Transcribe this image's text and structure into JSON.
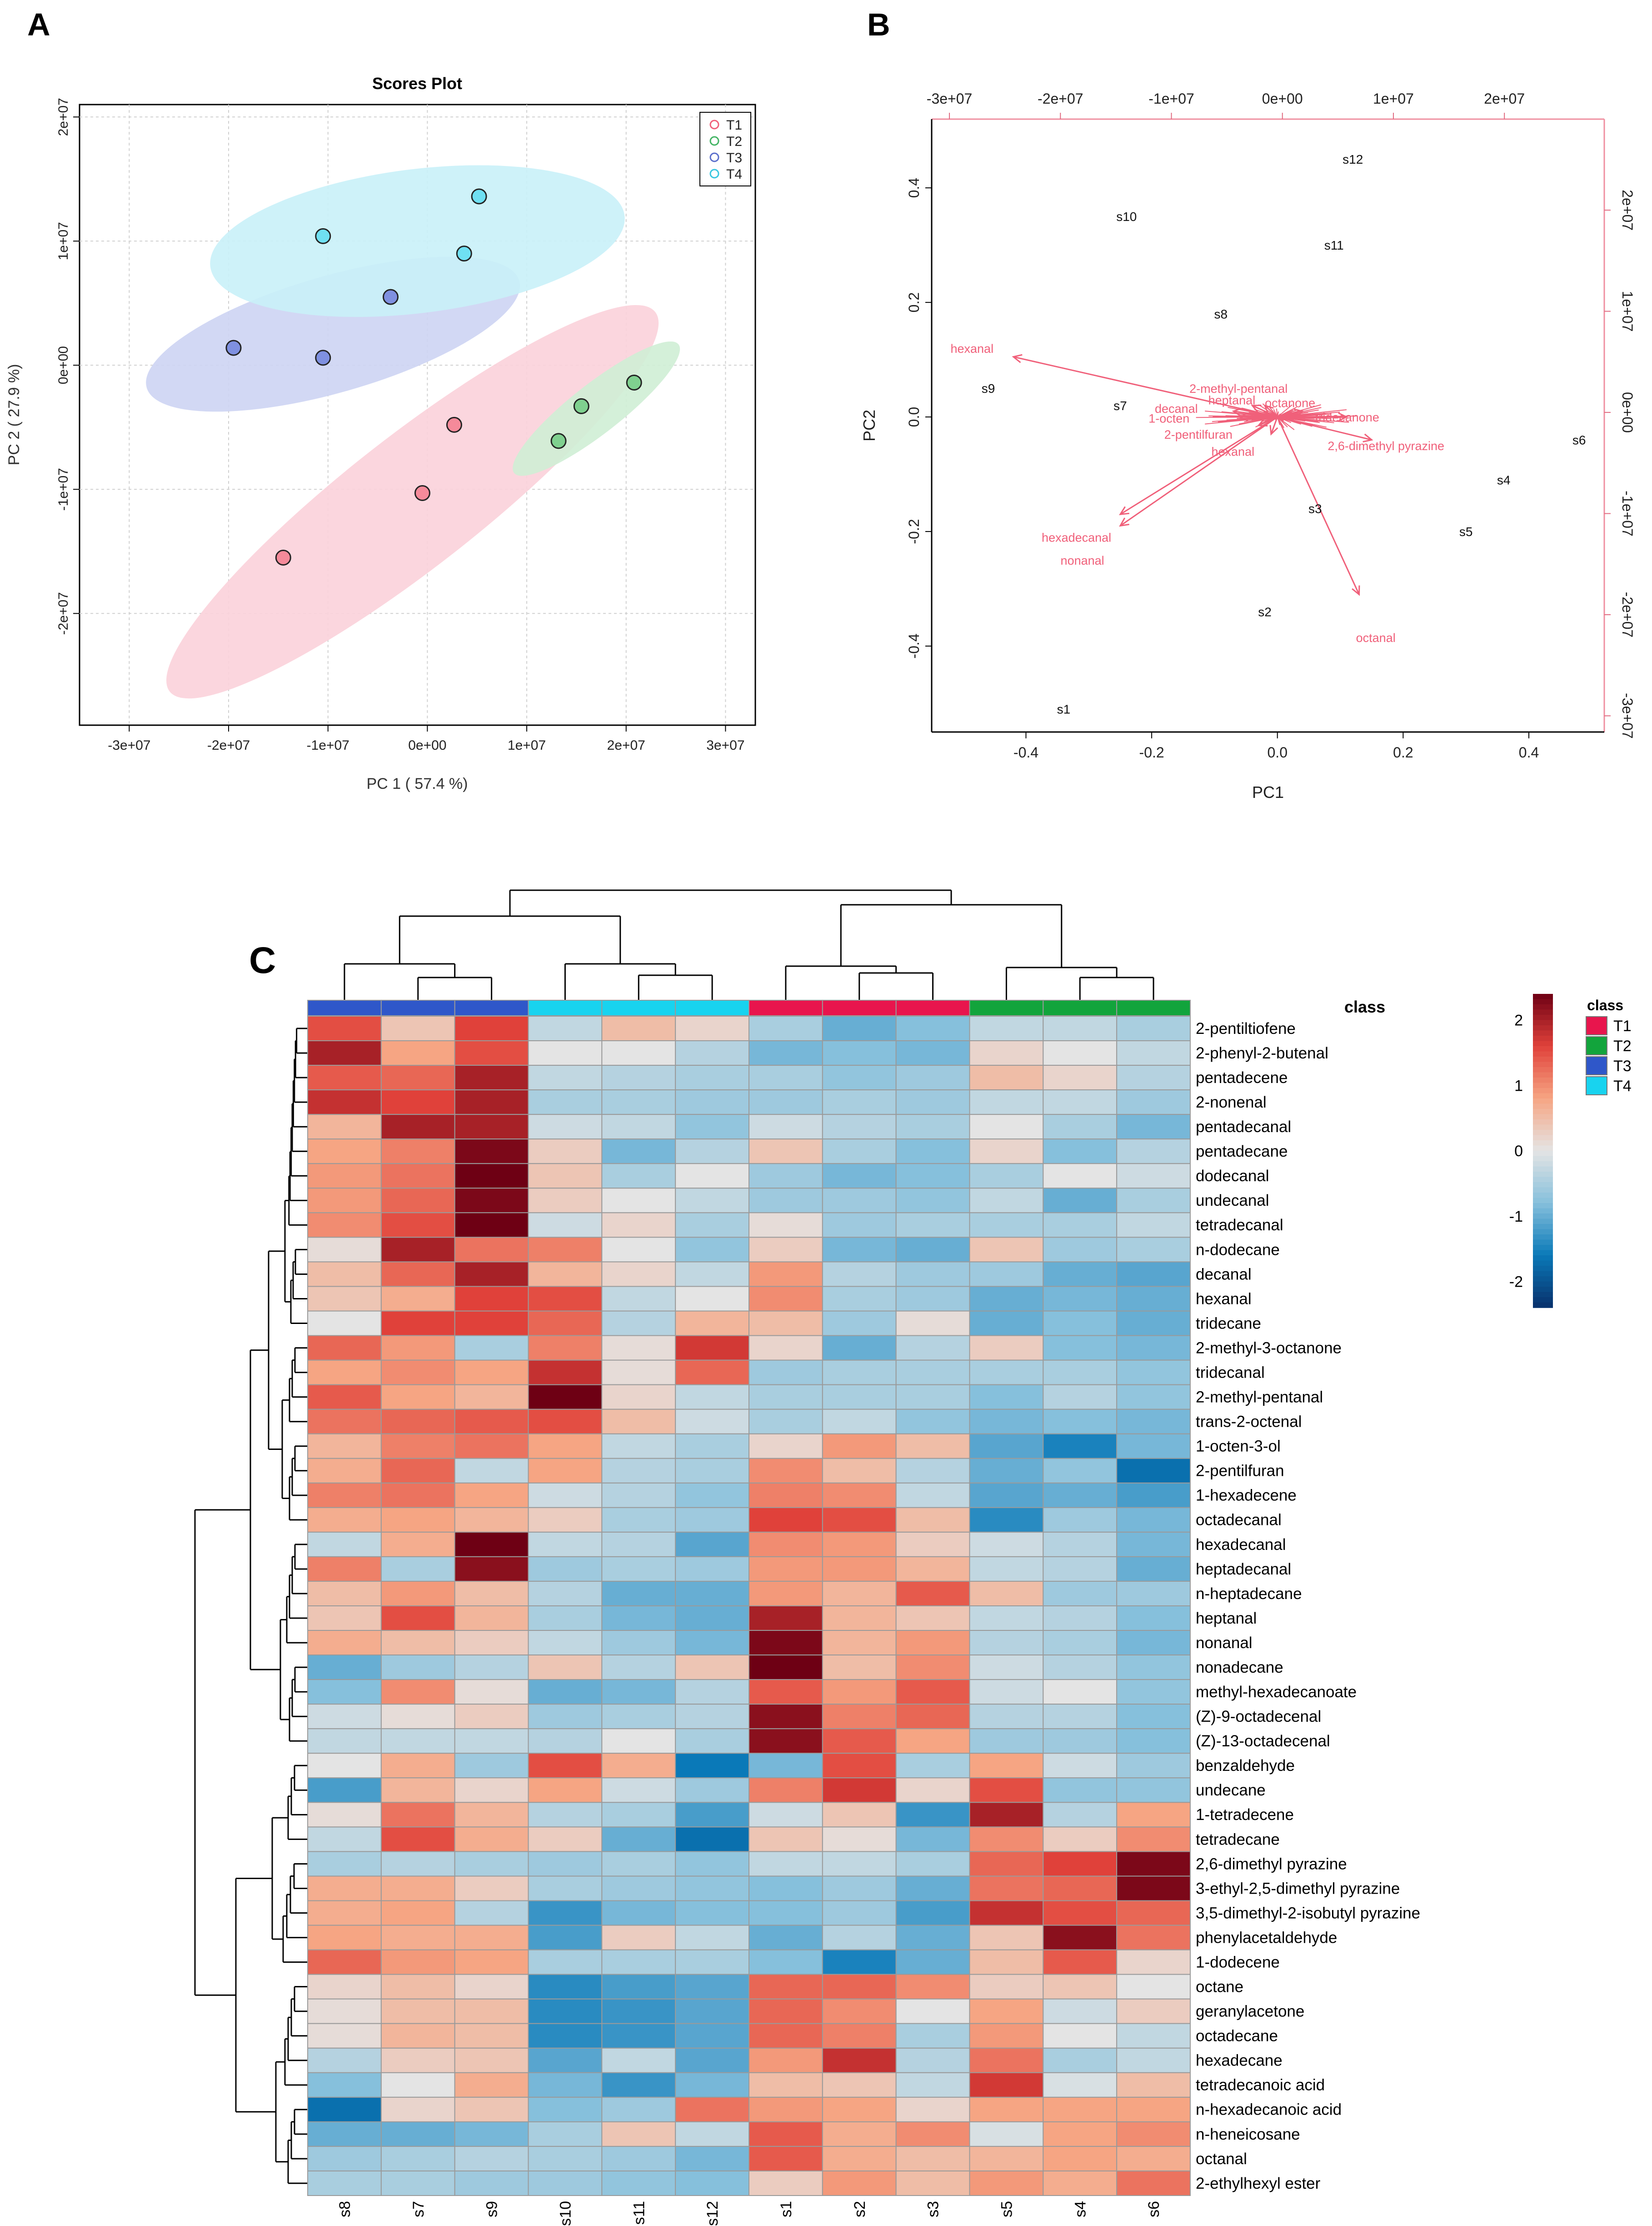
{
  "panels": {
    "A": "A",
    "B": "B",
    "C": "C"
  },
  "chart_data": [
    {
      "type": "scatter",
      "panel": "A",
      "title": "Scores Plot",
      "xlabel": "PC 1 ( 57.4 %)",
      "ylabel": "PC 2 ( 27.9 %)",
      "xlim": [
        -35000000,
        33000000
      ],
      "ylim": [
        -29000000,
        21000000
      ],
      "xticks": [
        -30000000,
        -20000000,
        -10000000,
        0,
        10000000,
        20000000,
        30000000
      ],
      "xtick_labels": [
        "-3e+07",
        "-2e+07",
        "-1e+07",
        "0e+00",
        "1e+07",
        "2e+07",
        "3e+07"
      ],
      "yticks": [
        -20000000,
        -10000000,
        0,
        10000000,
        20000000
      ],
      "ytick_labels": [
        "-2e+07",
        "-1e+07",
        "0e+00",
        "1e+07",
        "2e+07"
      ],
      "legend": {
        "position": "top-right",
        "entries": [
          "T1",
          "T2",
          "T3",
          "T4"
        ]
      },
      "colors": {
        "T1": "#f0607a",
        "T2": "#43b464",
        "T3": "#5b6fcc",
        "T4": "#39c6e0"
      },
      "fills": {
        "T1": "#f58a9a",
        "T2": "#7fd08f",
        "T3": "#7f90e0",
        "T4": "#6fe0f2"
      },
      "ellipse_fills": {
        "T1": "#fbd2da",
        "T2": "#cfeed5",
        "T3": "#cdd4f3",
        "T4": "#c9f1f8"
      },
      "series": [
        {
          "name": "T1",
          "x": [
            -14500000,
            -500000,
            2700000
          ],
          "y": [
            -15500000,
            -10300000,
            -4800000
          ]
        },
        {
          "name": "T2",
          "x": [
            13200000,
            15500000,
            20800000
          ],
          "y": [
            -6100000,
            -3300000,
            -1400000
          ]
        },
        {
          "name": "T3",
          "x": [
            -19500000,
            -10500000,
            -3700000
          ],
          "y": [
            1400000,
            600000,
            5500000
          ]
        },
        {
          "name": "T4",
          "x": [
            -10500000,
            3700000,
            5200000
          ],
          "y": [
            10400000,
            9000000,
            13600000
          ]
        }
      ],
      "ellipses": [
        {
          "name": "T1",
          "center": [
            -1500000,
            -11000000
          ],
          "rx": 31000000,
          "ry": 5300000,
          "angle_deg": -38
        },
        {
          "name": "T2",
          "center": [
            17000000,
            -3500000
          ],
          "rx": 10500000,
          "ry": 2000000,
          "angle_deg": -38
        },
        {
          "name": "T3",
          "center": [
            -9500000,
            2500000
          ],
          "rx": 19500000,
          "ry": 4700000,
          "angle_deg": -16
        },
        {
          "name": "T4",
          "center": [
            -1000000,
            10000000
          ],
          "rx": 21000000,
          "ry": 5800000,
          "angle_deg": -7
        }
      ]
    },
    {
      "type": "scatter",
      "panel": "B",
      "subtype": "biplot",
      "xlabel": "PC1",
      "ylabel": "PC2",
      "xlim": [
        -0.55,
        0.52
      ],
      "ylim": [
        -0.55,
        0.52
      ],
      "xticks": [
        -0.4,
        -0.2,
        0.0,
        0.2,
        0.4
      ],
      "xtick_labels": [
        "-0.4",
        "-0.2",
        "0.0",
        "0.2",
        "0.4"
      ],
      "yticks": [
        -0.4,
        -0.2,
        0.0,
        0.2,
        0.4
      ],
      "ytick_labels": [
        "-0.4",
        "-0.2",
        "0.0",
        "0.2",
        "0.4"
      ],
      "top_axis": {
        "lim": [
          -31600000,
          29000000
        ],
        "ticks": [
          -30000000,
          -20000000,
          -10000000,
          0,
          10000000,
          20000000
        ],
        "labels": [
          "-3e+07",
          "-2e+07",
          "-1e+07",
          "0e+00",
          "1e+07",
          "2e+07"
        ]
      },
      "right_axis": {
        "lim": [
          -31600000,
          29000000
        ],
        "ticks": [
          -30000000,
          -20000000,
          -10000000,
          0,
          10000000,
          20000000
        ],
        "labels": [
          "-3e+07",
          "-2e+07",
          "-1e+07",
          "0e+00",
          "1e+07",
          "2e+07"
        ]
      },
      "samples": [
        {
          "label": "s1",
          "x": -0.34,
          "y": -0.51
        },
        {
          "label": "s2",
          "x": -0.02,
          "y": -0.34
        },
        {
          "label": "s3",
          "x": 0.06,
          "y": -0.16
        },
        {
          "label": "s4",
          "x": 0.36,
          "y": -0.11
        },
        {
          "label": "s5",
          "x": 0.3,
          "y": -0.2
        },
        {
          "label": "s6",
          "x": 0.48,
          "y": -0.04
        },
        {
          "label": "s7",
          "x": -0.25,
          "y": 0.02
        },
        {
          "label": "s8",
          "x": -0.09,
          "y": 0.18
        },
        {
          "label": "s9",
          "x": -0.46,
          "y": 0.05
        },
        {
          "label": "s10",
          "x": -0.24,
          "y": 0.35
        },
        {
          "label": "s11",
          "x": 0.09,
          "y": 0.3
        },
        {
          "label": "s12",
          "x": 0.12,
          "y": 0.45
        }
      ],
      "loadings": [
        {
          "label": "hexanal",
          "x": -0.42,
          "y": 0.105,
          "lx": -0.52,
          "ly": 0.12
        },
        {
          "label": "hexadecanal",
          "x": -0.25,
          "y": -0.19,
          "lx": -0.375,
          "ly": -0.21
        },
        {
          "label": "nonanal",
          "x": -0.25,
          "y": -0.17,
          "lx": -0.345,
          "ly": -0.25
        },
        {
          "label": "octanal",
          "x": 0.13,
          "y": -0.31,
          "lx": 0.125,
          "ly": -0.385
        },
        {
          "label": "2,6-dimethyl pyrazine",
          "x": 0.15,
          "y": -0.04,
          "lx": 0.08,
          "ly": -0.05
        },
        {
          "label": "2-methyl-pentanal",
          "x": -0.04,
          "y": 0.02,
          "lx": -0.14,
          "ly": 0.05
        },
        {
          "label": "heptanal",
          "x": -0.02,
          "y": 0.02,
          "lx": -0.11,
          "ly": 0.03
        },
        {
          "label": "octanone",
          "x": 0.04,
          "y": 0.01,
          "lx": -0.02,
          "ly": 0.025
        },
        {
          "label": "decanal",
          "x": -0.07,
          "y": 0.01,
          "lx": -0.195,
          "ly": 0.015
        },
        {
          "label": "1-octen",
          "x": -0.06,
          "y": 0.0,
          "lx": -0.205,
          "ly": -0.002
        },
        {
          "label": "2-pentilfuran",
          "x": -0.03,
          "y": -0.015,
          "lx": -0.18,
          "ly": -0.03
        },
        {
          "label": "hexanal",
          "x": -0.01,
          "y": -0.03,
          "lx": -0.105,
          "ly": -0.06
        },
        {
          "label": "tridecanone",
          "x": 0.11,
          "y": 0.0,
          "lx": 0.06,
          "ly": 0.0
        }
      ]
    },
    {
      "type": "heatmap",
      "panel": "C",
      "columns": [
        "s8",
        "s7",
        "s9",
        "s10",
        "s11",
        "s12",
        "s1",
        "s2",
        "s3",
        "s5",
        "s4",
        "s6"
      ],
      "class_row_label": "class",
      "column_classes": [
        "T3",
        "T3",
        "T3",
        "T4",
        "T4",
        "T4",
        "T1",
        "T1",
        "T1",
        "T2",
        "T2",
        "T2"
      ],
      "class_legend": {
        "title": "class",
        "entries": [
          "T1",
          "T2",
          "T3",
          "T4"
        ],
        "colors": [
          "#e8154d",
          "#12a43c",
          "#2f57c9",
          "#18d3ef"
        ]
      },
      "scale": {
        "min": -2.4,
        "max": 2.4,
        "ticks": [
          2,
          1,
          0,
          -1,
          -2
        ],
        "tick_labels": [
          "2",
          "1",
          "0",
          "-1",
          "-2"
        ]
      },
      "rows": [
        "2-pentiltiofene",
        "2-phenyl-2-butenal",
        "pentadecene",
        "2-nonenal",
        "pentadecanal",
        "pentadecane",
        "dodecanal",
        "undecanal",
        "tetradecanal",
        "n-dodecane",
        "decanal",
        "hexanal",
        "tridecane",
        "2-methyl-3-octanone",
        "tridecanal",
        "2-methyl-pentanal",
        "trans-2-octenal",
        "1-octen-3-ol",
        "2-pentilfuran",
        "1-hexadecene",
        "octadecanal",
        "hexadecanal",
        "heptadecanal",
        "n-heptadecane",
        "heptanal",
        "nonanal",
        "nonadecane",
        "methyl-hexadecanoate",
        "(Z)-9-octadecenal",
        "(Z)-13-octadecenal",
        "benzaldehyde",
        "undecane",
        "1-tetradecene",
        "tetradecane",
        "2,6-dimethyl pyrazine",
        "3-ethyl-2,5-dimethyl pyrazine",
        "3,5-dimethyl-2-isobutyl pyrazine",
        "phenylacetaldehyde",
        "1-dodecene",
        "octane",
        "geranylacetone",
        "octadecane",
        "hexadecane",
        "tetradecanoic acid",
        "n-hexadecanoic acid",
        "n-heneicosane",
        "octanal",
        "2-ethylhexyl ester"
      ],
      "values": [
        [
          1.5,
          0.4,
          1.6,
          -0.3,
          0.5,
          0.2,
          -0.5,
          -1.0,
          -0.8,
          -0.3,
          -0.3,
          -0.5
        ],
        [
          2.0,
          0.8,
          1.5,
          0.0,
          0.0,
          -0.4,
          -0.9,
          -0.8,
          -0.9,
          0.2,
          0.0,
          -0.3
        ],
        [
          1.4,
          1.3,
          2.0,
          -0.3,
          -0.4,
          -0.5,
          -0.5,
          -0.7,
          -0.6,
          0.5,
          0.2,
          -0.4
        ],
        [
          1.8,
          1.6,
          2.0,
          -0.5,
          -0.5,
          -0.6,
          -0.6,
          -0.5,
          -0.6,
          -0.3,
          -0.3,
          -0.6
        ],
        [
          0.6,
          2.0,
          2.0,
          -0.2,
          -0.3,
          -0.7,
          -0.2,
          -0.4,
          -0.5,
          0.0,
          -0.5,
          -0.9
        ],
        [
          0.8,
          1.1,
          2.3,
          0.3,
          -0.9,
          -0.4,
          0.4,
          -0.5,
          -0.8,
          0.2,
          -0.8,
          -0.4
        ],
        [
          0.9,
          1.2,
          2.4,
          0.4,
          -0.5,
          0.0,
          -0.6,
          -0.9,
          -0.8,
          -0.5,
          0.0,
          -0.2
        ],
        [
          0.9,
          1.3,
          2.3,
          0.3,
          0.0,
          -0.3,
          -0.6,
          -0.6,
          -0.7,
          -0.3,
          -1.0,
          -0.5
        ],
        [
          1.0,
          1.5,
          2.5,
          -0.2,
          0.2,
          -0.5,
          0.1,
          -0.6,
          -0.5,
          -0.5,
          -0.5,
          -0.3
        ],
        [
          0.1,
          2.0,
          1.2,
          1.1,
          0.0,
          -0.7,
          0.3,
          -0.9,
          -1.0,
          0.4,
          -0.6,
          -0.5
        ],
        [
          0.5,
          1.3,
          2.0,
          0.6,
          0.2,
          -0.3,
          0.9,
          -0.4,
          -0.6,
          -0.6,
          -1.0,
          -1.1
        ],
        [
          0.4,
          0.7,
          1.6,
          1.5,
          -0.3,
          0.0,
          1.0,
          -0.5,
          -0.6,
          -1.0,
          -0.9,
          -1.0
        ],
        [
          0.0,
          1.6,
          1.6,
          1.3,
          -0.4,
          0.6,
          0.5,
          -0.6,
          0.1,
          -1.0,
          -0.8,
          -1.0
        ],
        [
          1.3,
          0.9,
          -0.5,
          1.1,
          0.1,
          1.7,
          0.2,
          -1.0,
          -0.4,
          0.3,
          -0.8,
          -0.9
        ],
        [
          0.8,
          1.0,
          0.8,
          1.8,
          0.1,
          1.3,
          -0.6,
          -0.5,
          -0.5,
          -0.5,
          -0.5,
          -0.7
        ],
        [
          1.4,
          0.8,
          0.6,
          2.4,
          0.2,
          -0.3,
          -0.5,
          -0.5,
          -0.5,
          -0.8,
          -0.4,
          -0.7
        ],
        [
          1.2,
          1.3,
          1.4,
          1.5,
          0.5,
          -0.2,
          -0.5,
          -0.3,
          -0.7,
          -0.9,
          -0.8,
          -0.9
        ],
        [
          0.6,
          1.1,
          1.2,
          0.8,
          -0.3,
          -0.5,
          0.2,
          0.9,
          0.5,
          -1.1,
          -1.5,
          -0.9
        ],
        [
          0.7,
          1.3,
          -0.3,
          0.8,
          -0.4,
          -0.5,
          1.0,
          0.5,
          -0.4,
          -1.0,
          -0.7,
          -1.7
        ],
        [
          1.1,
          1.2,
          0.8,
          -0.2,
          -0.4,
          -0.7,
          1.1,
          1.0,
          -0.3,
          -1.1,
          -1.0,
          -1.2
        ],
        [
          0.7,
          0.8,
          0.6,
          0.3,
          -0.5,
          -0.6,
          1.6,
          1.5,
          0.5,
          -1.4,
          -0.6,
          -0.9
        ],
        [
          -0.3,
          0.7,
          2.4,
          -0.3,
          -0.4,
          -1.1,
          1.0,
          0.9,
          0.3,
          -0.2,
          -0.4,
          -0.9
        ],
        [
          1.1,
          -0.5,
          2.2,
          -0.6,
          -0.5,
          -0.6,
          0.9,
          0.9,
          0.6,
          -0.3,
          -0.4,
          -1.0
        ],
        [
          0.5,
          0.9,
          0.5,
          -0.4,
          -1.0,
          -1.0,
          0.9,
          0.6,
          1.4,
          0.5,
          -0.6,
          -0.6
        ],
        [
          0.4,
          1.5,
          0.6,
          -0.5,
          -0.9,
          -1.0,
          2.0,
          0.6,
          0.4,
          -0.3,
          -0.4,
          -0.8
        ],
        [
          0.7,
          0.5,
          0.3,
          -0.3,
          -0.6,
          -0.9,
          2.3,
          0.6,
          0.9,
          -0.4,
          -0.5,
          -0.9
        ],
        [
          -1.0,
          -0.6,
          -0.4,
          0.4,
          -0.4,
          0.4,
          2.4,
          0.5,
          1.0,
          -0.2,
          -0.4,
          -0.7
        ],
        [
          -0.8,
          1.0,
          0.1,
          -1.0,
          -0.9,
          -0.4,
          1.4,
          0.9,
          1.4,
          -0.2,
          0.0,
          -0.7
        ],
        [
          -0.2,
          0.1,
          0.3,
          -0.6,
          -0.5,
          -0.4,
          2.2,
          1.1,
          1.3,
          -0.4,
          -0.4,
          -0.8
        ],
        [
          -0.3,
          -0.3,
          -0.3,
          -0.4,
          0.0,
          -0.5,
          2.2,
          1.4,
          0.8,
          -0.6,
          -0.6,
          -0.8
        ],
        [
          0.0,
          0.7,
          -0.6,
          1.5,
          0.7,
          -1.6,
          -0.9,
          1.5,
          -0.5,
          0.8,
          -0.2,
          -0.6
        ],
        [
          -1.2,
          0.6,
          0.2,
          0.8,
          -0.2,
          -0.6,
          1.1,
          1.7,
          0.2,
          1.5,
          -0.7,
          -0.7
        ],
        [
          0.1,
          1.2,
          0.6,
          -0.4,
          -0.5,
          -1.2,
          -0.2,
          0.4,
          -1.3,
          2.0,
          -0.4,
          0.8
        ],
        [
          -0.3,
          1.5,
          0.7,
          0.3,
          -1.0,
          -1.7,
          0.4,
          0.1,
          -0.9,
          1.0,
          0.3,
          1.0
        ],
        [
          -0.5,
          -0.4,
          -0.5,
          -0.6,
          -0.5,
          -0.7,
          -0.3,
          -0.3,
          -0.5,
          1.3,
          1.6,
          2.3
        ],
        [
          0.7,
          0.7,
          0.3,
          -0.5,
          -0.6,
          -0.7,
          -0.8,
          -0.6,
          -1.0,
          1.2,
          1.3,
          2.3
        ],
        [
          0.7,
          0.8,
          -0.4,
          -1.3,
          -0.9,
          -0.8,
          -0.8,
          -0.6,
          -1.2,
          1.8,
          1.5,
          1.3
        ],
        [
          0.8,
          0.7,
          0.7,
          -1.2,
          0.3,
          -0.3,
          -1.0,
          -0.4,
          -1.0,
          0.4,
          2.2,
          1.2
        ],
        [
          1.3,
          0.9,
          0.8,
          -0.5,
          -0.5,
          -0.5,
          -0.8,
          -1.5,
          -1.0,
          0.5,
          1.4,
          0.2
        ],
        [
          0.2,
          0.5,
          0.2,
          -1.4,
          -1.2,
          -1.1,
          1.3,
          1.3,
          1.0,
          0.3,
          0.4,
          0.0
        ],
        [
          0.1,
          0.5,
          0.5,
          -1.4,
          -1.3,
          -1.1,
          1.3,
          1.0,
          0.0,
          0.8,
          -0.2,
          0.3
        ],
        [
          0.1,
          0.6,
          0.5,
          -1.4,
          -1.3,
          -1.1,
          1.3,
          1.1,
          -0.5,
          0.9,
          0.0,
          -0.3
        ],
        [
          -0.4,
          0.3,
          0.4,
          -1.1,
          -0.3,
          -1.1,
          0.9,
          1.8,
          -0.4,
          1.2,
          -0.5,
          -0.3
        ],
        [
          -0.8,
          0.0,
          0.7,
          -0.9,
          -1.3,
          -0.9,
          0.5,
          0.4,
          -0.3,
          1.7,
          -0.1,
          0.5
        ],
        [
          -1.7,
          0.2,
          0.4,
          -0.8,
          -0.6,
          1.2,
          0.9,
          0.8,
          0.2,
          0.8,
          0.8,
          0.8
        ],
        [
          -1.0,
          -1.0,
          -0.9,
          -0.5,
          0.4,
          -0.3,
          1.4,
          0.7,
          1.0,
          -0.1,
          0.8,
          1.0
        ],
        [
          -0.6,
          -0.5,
          -0.4,
          -0.5,
          -0.6,
          -0.9,
          1.4,
          0.7,
          0.5,
          0.6,
          0.8,
          0.7
        ],
        [
          -0.5,
          -0.5,
          -0.6,
          -0.6,
          -0.7,
          -0.8,
          0.3,
          0.9,
          0.5,
          0.9,
          0.7,
          1.2
        ]
      ]
    }
  ]
}
